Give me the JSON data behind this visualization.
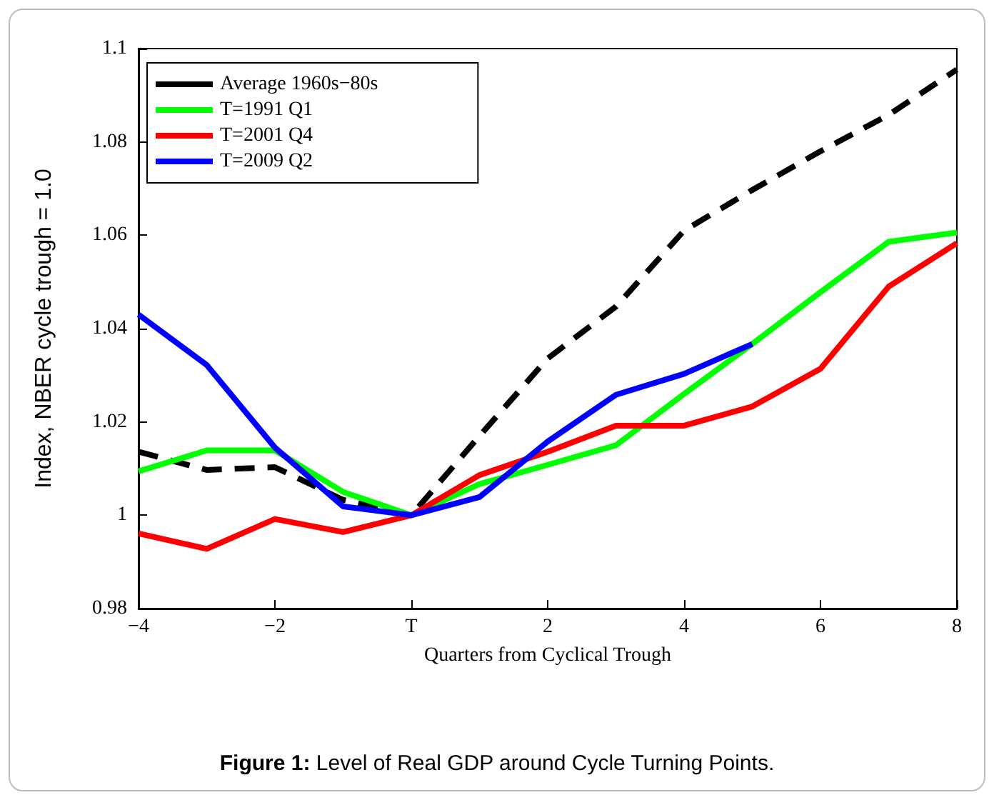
{
  "chart_data": {
    "type": "line",
    "xlabel": "Quarters from Cyclical Trough",
    "ylabel": "Index, NBER cycle trough = 1.0",
    "annotations": [
      "Figure 1: Level of Real GDP around Cycle Turning Points."
    ],
    "x": [
      -4,
      -3,
      -2,
      -1,
      0,
      1,
      2,
      3,
      4,
      5,
      6,
      7,
      8
    ],
    "series": [
      {
        "name": "Average 1960s−80s",
        "color": "#000000",
        "line_style": "dashed",
        "values": [
          1.0136,
          1.0097,
          1.0103,
          1.0033,
          1.0,
          1.017,
          1.0336,
          1.0447,
          1.061,
          1.0697,
          1.078,
          1.0858,
          1.0955
        ]
      },
      {
        "name": "T=1991 Q1",
        "color": "#00ff00",
        "values": [
          1.0094,
          1.0139,
          1.0139,
          1.005,
          1.0,
          1.0067,
          1.0108,
          1.015,
          1.026,
          1.0367,
          1.0478,
          1.0586,
          1.0606
        ]
      },
      {
        "name": "T=2001 Q4",
        "color": "#ff0000",
        "values": [
          0.9961,
          0.9928,
          0.9992,
          0.9964,
          1.0,
          1.0086,
          1.0136,
          1.0192,
          1.0192,
          1.0233,
          1.0314,
          1.049,
          1.0583
        ]
      },
      {
        "name": "T=2009 Q2",
        "color": "#0000ff",
        "values": [
          1.043,
          1.0322,
          1.0145,
          1.0019,
          1.0,
          1.0039,
          1.0158,
          1.0258,
          1.0303,
          1.0367,
          null,
          null,
          null
        ]
      }
    ],
    "xlim": [
      -4,
      8
    ],
    "xticks": [
      {
        "value": -4,
        "label": "−4"
      },
      {
        "value": -2,
        "label": "−2"
      },
      {
        "value": 0,
        "label": "T"
      },
      2,
      4,
      6,
      8
    ],
    "ylim": [
      0.98,
      1.1
    ],
    "yticks": [
      0.98,
      {
        "value": 1,
        "label": "1"
      },
      1.02,
      1.04,
      1.06,
      1.08,
      1.1
    ],
    "grid": false,
    "legend": "top left",
    "marker": "none",
    "line_style": "solid"
  }
}
